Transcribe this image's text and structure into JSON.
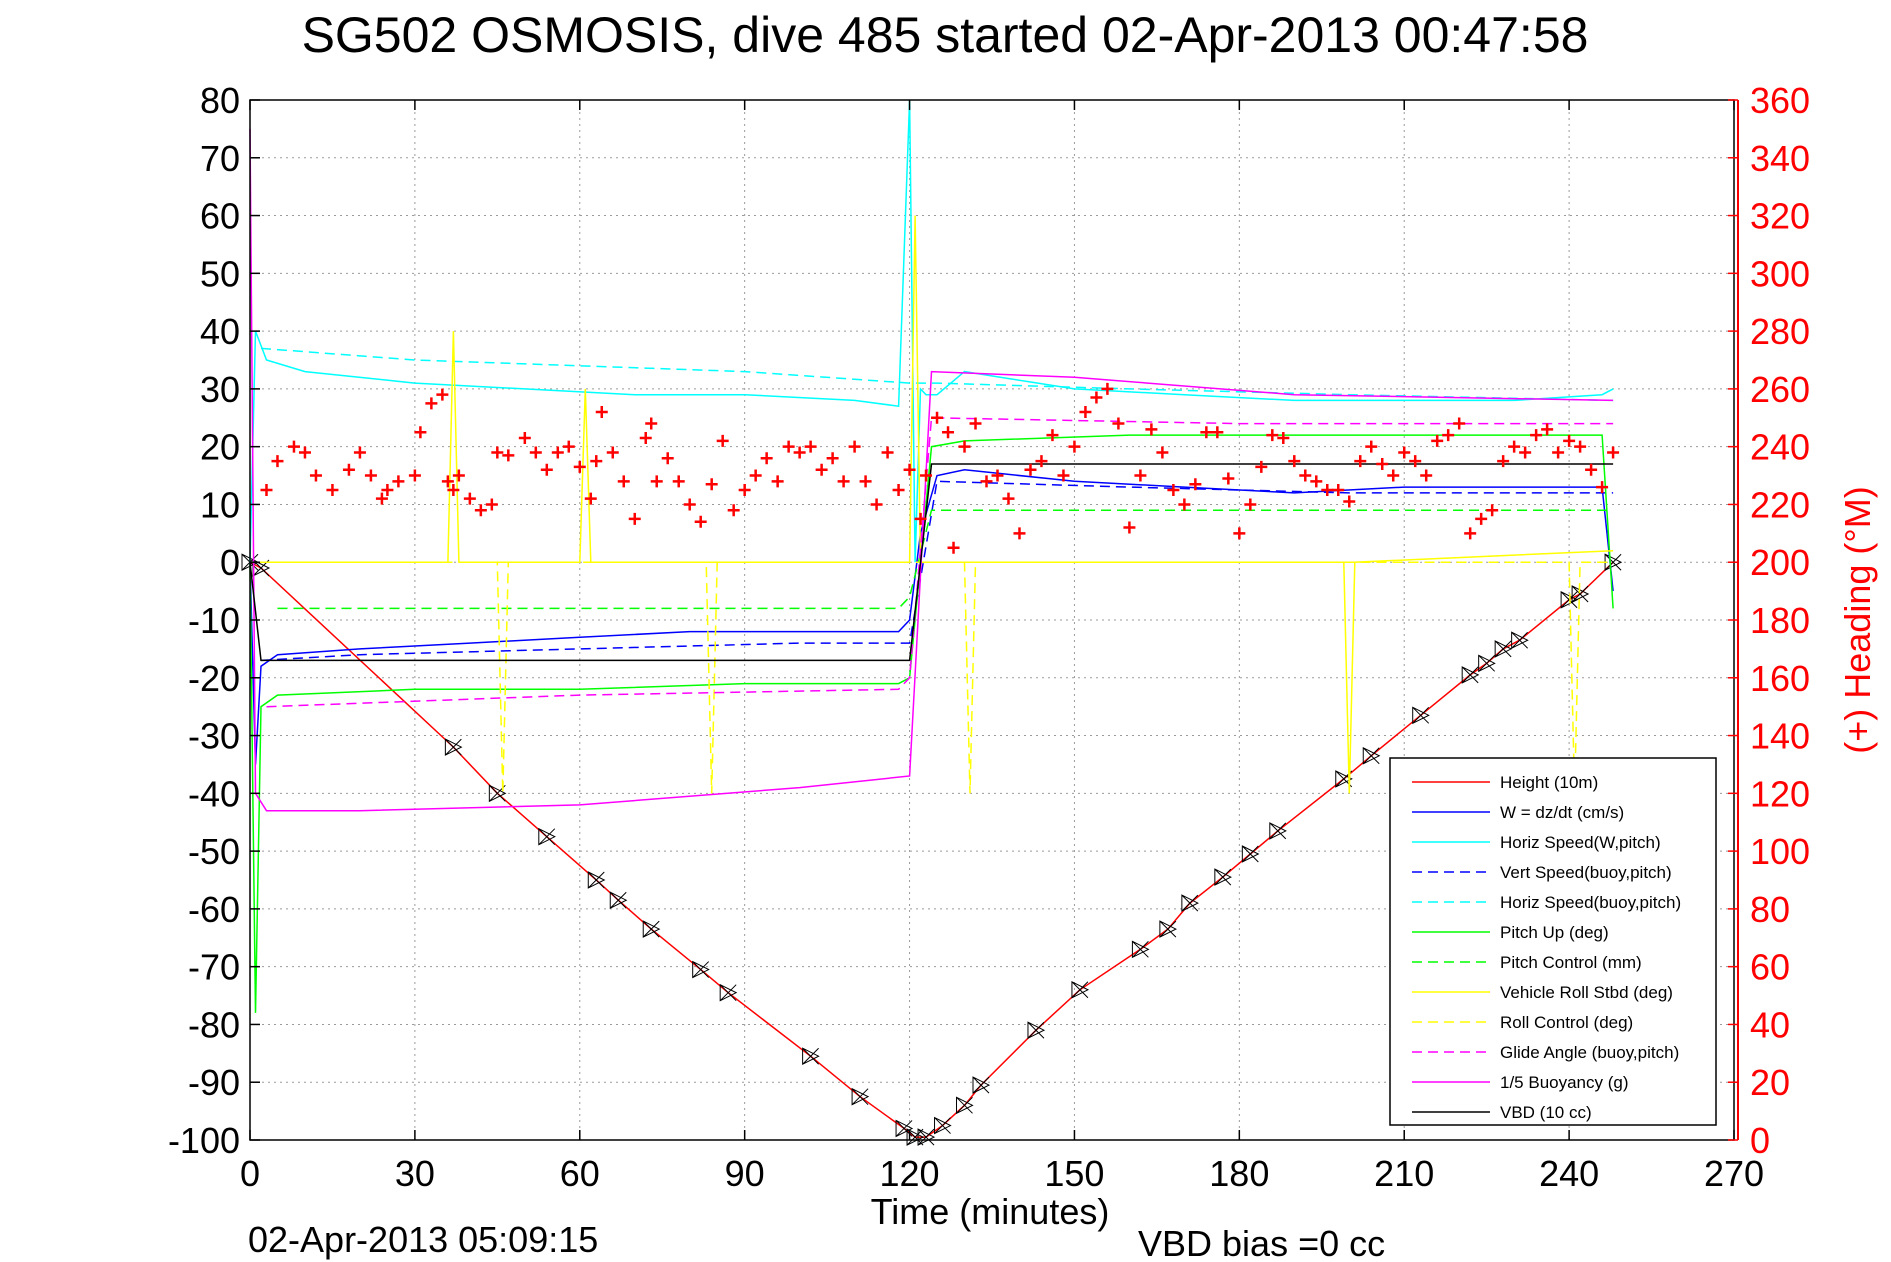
{
  "chart_data": {
    "type": "line",
    "title": "SG502 OSMOSIS, dive 485 started 02-Apr-2013 00:47:58",
    "xlabel": "Time (minutes)",
    "ylabel": "",
    "y2label": "(+) Heading (°M)",
    "footer_left": "02-Apr-2013 05:09:15",
    "footer_right": "VBD bias =0 cc",
    "xlim": [
      0,
      270
    ],
    "ylim": [
      -100,
      80
    ],
    "y2lim": [
      0,
      360
    ],
    "xticks": [
      "0",
      "30",
      "60",
      "90",
      "120",
      "150",
      "180",
      "210",
      "240",
      "270"
    ],
    "yticks": [
      "80",
      "70",
      "60",
      "50",
      "40",
      "30",
      "20",
      "10",
      "0",
      "-10",
      "-20",
      "-30",
      "-40",
      "-50",
      "-60",
      "-70",
      "-80",
      "-90",
      "-100"
    ],
    "y2ticks": [
      "360",
      "340",
      "320",
      "300",
      "280",
      "260",
      "240",
      "220",
      "200",
      "180",
      "160",
      "140",
      "120",
      "100",
      "80",
      "60",
      "40",
      "20",
      "0"
    ],
    "grid": true,
    "legend_position": "bottom-right",
    "series": [
      {
        "name": "Height (10m)",
        "color": "#ff0000",
        "dash": "solid",
        "x": [
          0,
          2,
          37,
          45,
          54,
          63,
          67,
          73,
          82,
          87,
          102,
          111,
          119,
          121,
          123,
          126,
          130,
          133,
          143,
          151,
          162,
          167,
          171,
          177,
          182,
          187,
          199,
          204,
          213,
          222,
          225,
          228,
          231,
          240,
          242,
          248
        ],
        "y": [
          0,
          -1,
          -32,
          -40,
          -47.5,
          -55,
          -58.5,
          -63.5,
          -70.5,
          -74.5,
          -85.5,
          -92.5,
          -98,
          -99.5,
          -99.5,
          -97.5,
          -94,
          -90.5,
          -81,
          -74,
          -67,
          -63.5,
          -59,
          -54.5,
          -50.5,
          -46.5,
          -37.5,
          -33.5,
          -26.5,
          -19.5,
          -17.5,
          -15,
          -13.5,
          -6.5,
          -5.5,
          0
        ]
      },
      {
        "name": "W = dz/dt (cm/s)",
        "color": "#0000ff",
        "dash": "solid",
        "x": [
          0,
          1,
          2,
          5,
          20,
          40,
          60,
          80,
          100,
          118,
          120,
          122,
          125,
          130,
          150,
          170,
          190,
          210,
          230,
          246,
          248
        ],
        "y": [
          0,
          -35,
          -18,
          -16,
          -15,
          -14,
          -13,
          -12,
          -12,
          -12,
          -10,
          5,
          15,
          16,
          14,
          13,
          12,
          13,
          13,
          13,
          -5
        ]
      },
      {
        "name": "Horiz Speed(W,pitch)",
        "color": "#00ffff",
        "dash": "solid",
        "x": [
          0,
          1,
          3,
          10,
          30,
          50,
          70,
          90,
          110,
          118,
          120,
          121,
          122,
          123,
          125,
          130,
          150,
          170,
          190,
          210,
          230,
          246,
          248
        ],
        "y": [
          0,
          40,
          35,
          33,
          31,
          30,
          29,
          29,
          28,
          27,
          80,
          0,
          30,
          29,
          29,
          33,
          30,
          29,
          28,
          28,
          28,
          29,
          30
        ]
      },
      {
        "name": "Vert Speed(buoy,pitch)",
        "color": "#0000ff",
        "dash": "dashed",
        "x": [
          2,
          20,
          60,
          100,
          120,
          125,
          160,
          200,
          248
        ],
        "y": [
          -17,
          -16,
          -15,
          -14,
          -14,
          14,
          13,
          12,
          12
        ]
      },
      {
        "name": "Horiz Speed(buoy,pitch)",
        "color": "#00ffff",
        "dash": "dashed",
        "x": [
          2,
          30,
          60,
          90,
          120,
          125,
          160,
          200,
          248
        ],
        "y": [
          37,
          35,
          34,
          33,
          31,
          31,
          30,
          29,
          28
        ]
      },
      {
        "name": "Pitch Up (deg)",
        "color": "#00ff00",
        "dash": "solid",
        "x": [
          0,
          1,
          2,
          5,
          30,
          60,
          90,
          118,
          120,
          124,
          130,
          160,
          190,
          220,
          246,
          248
        ],
        "y": [
          0,
          -78,
          -25,
          -23,
          -22,
          -22,
          -21,
          -21,
          -20,
          20,
          21,
          22,
          22,
          22,
          22,
          -8
        ]
      },
      {
        "name": "Pitch Control (mm)",
        "color": "#00ff00",
        "dash": "dashed",
        "x": [
          5,
          118,
          120,
          124,
          248
        ],
        "y": [
          -8,
          -8,
          -6,
          9,
          9
        ]
      },
      {
        "name": "Vehicle Roll Stbd (deg)",
        "color": "#ffff00",
        "dash": "solid",
        "x": [
          0,
          5,
          36,
          37,
          38,
          60,
          61,
          62,
          120,
          121,
          122,
          125,
          180,
          199,
          200,
          201,
          248
        ],
        "y": [
          0,
          0,
          0,
          40,
          0,
          0,
          30,
          0,
          0,
          60,
          0,
          0,
          0,
          0,
          -40,
          0,
          2
        ]
      },
      {
        "name": "Roll Control (deg)",
        "color": "#ffff00",
        "dash": "dashed",
        "x": [
          3,
          45,
          46,
          47,
          83,
          84,
          85,
          130,
          131,
          132,
          240,
          241,
          242,
          248
        ],
        "y": [
          0,
          0,
          -40,
          0,
          0,
          -40,
          0,
          0,
          -40,
          0,
          0,
          -40,
          0,
          0
        ]
      },
      {
        "name": "Glide Angle (buoy,pitch)",
        "color": "#ff00ff",
        "dash": "dashed",
        "x": [
          3,
          60,
          118,
          120,
          124,
          180,
          248
        ],
        "y": [
          -25,
          -23,
          -22,
          -20,
          25,
          24,
          24
        ]
      },
      {
        "name": "1/5 Buoyancy (g)",
        "color": "#ff00ff",
        "dash": "solid",
        "x": [
          0,
          1,
          3,
          20,
          60,
          100,
          120,
          124,
          150,
          190,
          248
        ],
        "y": [
          75,
          -40,
          -43,
          -43,
          -42,
          -39,
          -37,
          33,
          32,
          29,
          28
        ]
      },
      {
        "name": "VBD (10 cc)",
        "color": "#000000",
        "dash": "solid",
        "x": [
          0,
          2,
          5,
          118,
          120,
          124,
          248
        ],
        "y": [
          0,
          -17,
          -17,
          -17,
          -17,
          17,
          17
        ]
      }
    ],
    "heading_series": {
      "axis": "right",
      "color": "#ff0000",
      "marker": "+",
      "x": [
        3,
        5,
        8,
        10,
        12,
        15,
        18,
        20,
        22,
        24,
        25,
        27,
        30,
        31,
        33,
        35,
        36,
        37,
        38,
        40,
        42,
        44,
        45,
        47,
        50,
        52,
        54,
        56,
        58,
        60,
        62,
        63,
        64,
        66,
        68,
        70,
        72,
        73,
        74,
        76,
        78,
        80,
        82,
        84,
        86,
        88,
        90,
        92,
        94,
        96,
        98,
        100,
        102,
        104,
        106,
        108,
        110,
        112,
        114,
        116,
        118,
        120,
        122,
        123,
        125,
        127,
        128,
        130,
        132,
        134,
        136,
        138,
        140,
        142,
        144,
        146,
        148,
        150,
        152,
        154,
        156,
        158,
        160,
        162,
        164,
        166,
        168,
        170,
        172,
        174,
        176,
        178,
        180,
        182,
        184,
        186,
        188,
        190,
        192,
        194,
        196,
        198,
        200,
        202,
        204,
        206,
        208,
        210,
        212,
        214,
        216,
        218,
        220,
        222,
        224,
        226,
        228,
        230,
        232,
        234,
        236,
        238,
        240,
        242,
        244,
        246,
        248
      ],
      "y": [
        225,
        235,
        240,
        238,
        230,
        225,
        232,
        238,
        230,
        222,
        225,
        228,
        230,
        245,
        255,
        258,
        228,
        225,
        230,
        222,
        218,
        220,
        238,
        237,
        243,
        238,
        232,
        238,
        240,
        233,
        222,
        235,
        252,
        238,
        228,
        215,
        243,
        248,
        228,
        236,
        228,
        220,
        214,
        227,
        242,
        218,
        225,
        230,
        236,
        228,
        240,
        238,
        240,
        232,
        236,
        228,
        240,
        228,
        220,
        238,
        225,
        232,
        215,
        230,
        250,
        245,
        205,
        240,
        248,
        228,
        230,
        222,
        210,
        232,
        235,
        244,
        230,
        240,
        252,
        257,
        260,
        248,
        212,
        230,
        246,
        238,
        225,
        220,
        227,
        245,
        245,
        229,
        210,
        220,
        233,
        244,
        243,
        235,
        230,
        228,
        225,
        225,
        221,
        235,
        240,
        234,
        230,
        238,
        235,
        230,
        242,
        244,
        248,
        210,
        215,
        218,
        235,
        240,
        238,
        244,
        246,
        238,
        242,
        240,
        232,
        226,
        238
      ]
    }
  }
}
